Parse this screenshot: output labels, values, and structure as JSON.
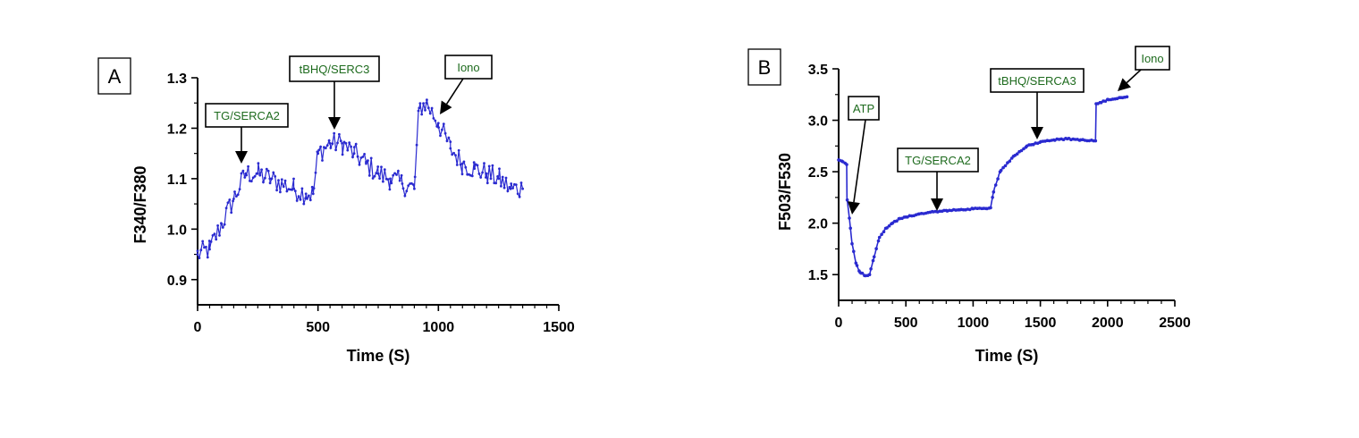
{
  "colors": {
    "series": "#2a2ad0",
    "annotation_text": "#1e6b1e",
    "axis": "#000000"
  },
  "chart_data": [
    {
      "type": "line",
      "panel_label": "A",
      "title": "",
      "xlabel": "Time (S)",
      "ylabel": "F340/F380",
      "xlim": [
        0,
        1500
      ],
      "ylim": [
        0.85,
        1.3
      ],
      "x_ticks": [
        "0",
        "500",
        "1000",
        "1500"
      ],
      "y_ticks": [
        "0.9",
        "1.0",
        "1.1",
        "1.2",
        "1.3"
      ],
      "grid": false,
      "markers": true,
      "series": [
        {
          "x": [
            0,
            50,
            100,
            150,
            200,
            250,
            300,
            350,
            400,
            450,
            480,
            500,
            550,
            600,
            650,
            700,
            750,
            800,
            850,
            900,
            920,
            950,
            1000,
            1050,
            1100,
            1150,
            1200,
            1250,
            1300,
            1350
          ],
          "values": [
            0.95,
            0.96,
            1.01,
            1.06,
            1.11,
            1.11,
            1.1,
            1.09,
            1.08,
            1.07,
            1.07,
            1.15,
            1.17,
            1.17,
            1.15,
            1.13,
            1.11,
            1.1,
            1.09,
            1.08,
            1.24,
            1.25,
            1.21,
            1.16,
            1.13,
            1.12,
            1.11,
            1.1,
            1.08,
            1.08
          ]
        }
      ],
      "annotations": [
        {
          "text": "TG/SERCA2",
          "x": 180,
          "y": 1.12
        },
        {
          "text": "tBHQ/SERC3",
          "x": 570,
          "y": 1.18
        },
        {
          "text": "Iono",
          "x": 990,
          "y": 1.22
        }
      ]
    },
    {
      "type": "line",
      "panel_label": "B",
      "title": "",
      "xlabel": "Time (S)",
      "ylabel": "F503/F530",
      "xlim": [
        0,
        2500
      ],
      "ylim": [
        1.25,
        3.5
      ],
      "x_ticks": [
        "0",
        "500",
        "1000",
        "1500",
        "2000",
        "2500"
      ],
      "y_ticks": [
        "1.5",
        "2.0",
        "2.5",
        "3.0",
        "3.5"
      ],
      "grid": false,
      "markers": true,
      "series": [
        {
          "x": [
            0,
            30,
            60,
            62,
            80,
            100,
            130,
            160,
            200,
            230,
            260,
            300,
            350,
            400,
            450,
            500,
            600,
            700,
            800,
            900,
            1000,
            1100,
            1130,
            1150,
            1200,
            1300,
            1400,
            1500,
            1600,
            1700,
            1800,
            1910,
            1915,
            1950,
            2000,
            2100,
            2150
          ],
          "values": [
            2.62,
            2.6,
            2.57,
            2.25,
            2.05,
            1.8,
            1.6,
            1.52,
            1.49,
            1.5,
            1.65,
            1.85,
            1.95,
            2.0,
            2.04,
            2.06,
            2.09,
            2.11,
            2.12,
            2.13,
            2.14,
            2.14,
            2.15,
            2.3,
            2.5,
            2.65,
            2.75,
            2.79,
            2.81,
            2.82,
            2.81,
            2.8,
            3.16,
            3.17,
            3.2,
            3.22,
            3.23
          ]
        }
      ],
      "annotations": [
        {
          "text": "ATP",
          "x": 90,
          "y": 2.15
        },
        {
          "text": "TG/SERCA2",
          "x": 730,
          "y": 2.12
        },
        {
          "text": "tBHQ/SERCA3",
          "x": 1470,
          "y": 2.8
        },
        {
          "text": "Iono",
          "x": 2060,
          "y": 3.23
        }
      ]
    }
  ]
}
